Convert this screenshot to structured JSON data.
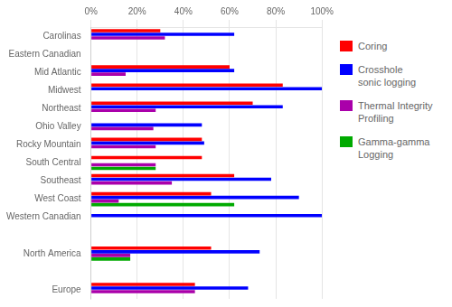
{
  "chart_data": {
    "type": "bar",
    "orientation": "horizontal",
    "categories": [
      "Carolinas",
      "Eastern Canadian",
      "Mid Atlantic",
      "Midwest",
      "Northeast",
      "Ohio Valley",
      "Rocky Mountain",
      "South Central",
      "Southeast",
      "West Coast",
      "Western Canadian",
      null,
      "North America",
      null,
      "Europe"
    ],
    "series": [
      {
        "name": "Coring",
        "color": "#ff0000",
        "values": [
          30,
          0,
          60,
          83,
          70,
          0,
          48,
          48,
          62,
          52,
          0,
          0,
          52,
          0,
          45
        ]
      },
      {
        "name": "Crosshole\nsonic logging",
        "color": "#0000ff",
        "values": [
          62,
          0,
          62,
          100,
          83,
          48,
          49,
          0,
          78,
          90,
          100,
          0,
          73,
          0,
          68
        ]
      },
      {
        "name": "Thermal Integrity\nProfiling",
        "color": "#aa00aa",
        "values": [
          32,
          0,
          15,
          0,
          28,
          27,
          28,
          28,
          35,
          12,
          0,
          0,
          17,
          0,
          45
        ]
      },
      {
        "name": "Gamma-gamma\nLogging",
        "color": "#00aa00",
        "values": [
          0,
          0,
          0,
          0,
          0,
          0,
          0,
          28,
          0,
          62,
          0,
          0,
          17,
          0,
          0
        ]
      }
    ],
    "xlim": [
      0,
      100
    ],
    "xticks": [
      {
        "value": 0,
        "label": "0%"
      },
      {
        "value": 20,
        "label": "20%"
      },
      {
        "value": 40,
        "label": "40%"
      },
      {
        "value": 60,
        "label": "60%"
      },
      {
        "value": 80,
        "label": "80%"
      },
      {
        "value": 100,
        "label": "100%"
      }
    ],
    "grid": true,
    "legend": "right"
  }
}
